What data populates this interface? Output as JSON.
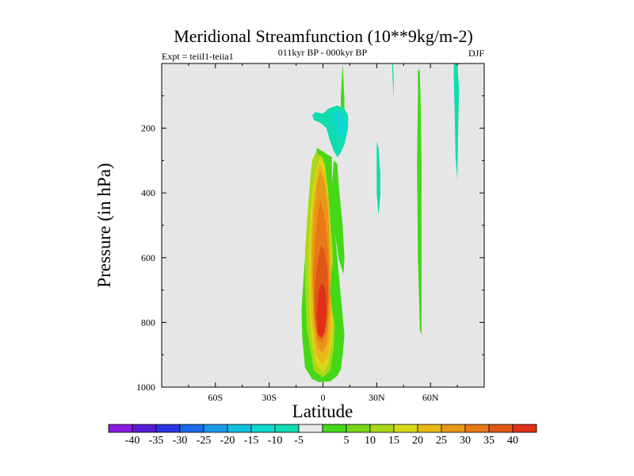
{
  "chart_data": {
    "type": "heatmap",
    "title": "Meridional Streamfunction (10**9kg/m-2)",
    "subtitle_left": "Expt = teiil1-teiia1",
    "subtitle_center": "011kyr BP - 000kyr BP",
    "subtitle_right": "DJF",
    "xlabel": "Latitude",
    "ylabel": "Pressure (in hPa)",
    "xlim": [
      -90,
      90
    ],
    "ylim": [
      1000,
      0
    ],
    "x_ticks": [
      {
        "value": -60,
        "label": "60S"
      },
      {
        "value": -30,
        "label": "30S"
      },
      {
        "value": 0,
        "label": "0"
      },
      {
        "value": 30,
        "label": "30N"
      },
      {
        "value": 60,
        "label": "60N"
      }
    ],
    "y_ticks": [
      {
        "value": 200,
        "label": "200"
      },
      {
        "value": 400,
        "label": "400"
      },
      {
        "value": 600,
        "label": "600"
      },
      {
        "value": 800,
        "label": "800"
      },
      {
        "value": 1000,
        "label": "1000"
      }
    ],
    "background_color": "#e6e6e6",
    "colorbar": {
      "colors": [
        "#8a1be0",
        "#5a1bd6",
        "#2e35e0",
        "#1b6ae8",
        "#1b99e8",
        "#10c0e0",
        "#10d8d0",
        "#10dcb0",
        "#e8e8e8",
        "#44d818",
        "#78d818",
        "#a8d818",
        "#d8d818",
        "#e8b818",
        "#e89818",
        "#e87818",
        "#e05818",
        "#e03018"
      ],
      "labels": [
        "-40",
        "-35",
        "-30",
        "-25",
        "-20",
        "-15",
        "-10",
        "-5",
        "5",
        "10",
        "15",
        "20",
        "25",
        "30",
        "35",
        "40"
      ]
    },
    "contours": [
      {
        "level": 5,
        "color": "#44d818",
        "lat": [
          -3.5,
          -3.5,
          -6,
          -7,
          -8,
          -9,
          -10,
          -11,
          -12,
          -11.5,
          -10,
          -6,
          -2,
          4,
          8,
          10,
          11,
          12,
          11,
          10,
          9,
          8,
          7,
          6,
          5.5,
          5,
          5
        ],
        "p": [
          260,
          290,
          320,
          380,
          450,
          520,
          600,
          680,
          760,
          850,
          940,
          975,
          985,
          982,
          965,
          945,
          900,
          840,
          780,
          720,
          660,
          600,
          540,
          480,
          420,
          350,
          290
        ]
      },
      {
        "level": 10,
        "color": "#a8d818",
        "lat": [
          -4,
          -6,
          -7,
          -8,
          -9,
          -10,
          -10,
          -9,
          -5,
          0,
          4,
          6,
          7,
          6,
          5.5,
          4,
          2,
          0
        ],
        "p": [
          275,
          300,
          350,
          420,
          500,
          580,
          680,
          820,
          950,
          970,
          950,
          880,
          780,
          680,
          580,
          470,
          360,
          290
        ]
      },
      {
        "level": 15,
        "color": "#d8d818",
        "lat": [
          -2,
          -4,
          -5.5,
          -7,
          -8,
          -8,
          -7,
          -4,
          0,
          3,
          5,
          6,
          5,
          4,
          3,
          1
        ],
        "p": [
          290,
          330,
          380,
          460,
          560,
          680,
          820,
          930,
          955,
          930,
          860,
          760,
          640,
          520,
          400,
          310
        ]
      },
      {
        "level": 20,
        "color": "#e8b818",
        "lat": [
          -2,
          -4,
          -5.5,
          -6.5,
          -7,
          -6.5,
          -4,
          0,
          3,
          4.5,
          5,
          4,
          3,
          1
        ],
        "p": [
          310,
          360,
          420,
          520,
          640,
          780,
          900,
          930,
          900,
          820,
          700,
          560,
          420,
          340
        ]
      },
      {
        "level": 25,
        "color": "#e89818",
        "lat": [
          -1.5,
          -3.5,
          -5,
          -6,
          -6,
          -5,
          -3,
          0,
          2.5,
          4,
          4,
          3,
          1
        ],
        "p": [
          330,
          380,
          460,
          560,
          680,
          810,
          880,
          895,
          860,
          760,
          620,
          460,
          370
        ]
      },
      {
        "level": 30,
        "color": "#e87818",
        "lat": [
          -1.5,
          -3,
          -4.5,
          -5.5,
          -5,
          -3,
          0,
          2.5,
          3.5,
          3,
          1.5
        ],
        "p": [
          420,
          470,
          560,
          660,
          780,
          850,
          865,
          820,
          720,
          600,
          490
        ]
      },
      {
        "level": 35,
        "color": "#e05818",
        "lat": [
          -1,
          -3,
          -4.5,
          -4.5,
          -3,
          0,
          2,
          3,
          2.5,
          1
        ],
        "p": [
          560,
          610,
          690,
          780,
          840,
          845,
          800,
          720,
          640,
          580
        ]
      },
      {
        "level": 40,
        "color": "#e03018",
        "lat": [
          -1,
          -2.5,
          -3.5,
          -3,
          -1,
          1,
          2,
          1.5,
          0.5
        ],
        "p": [
          680,
          710,
          770,
          830,
          850,
          830,
          770,
          710,
          685
        ]
      },
      {
        "level": 5,
        "color": "#44d818",
        "lat": [
          6,
          5,
          6,
          9,
          11.5,
          12,
          11,
          9,
          8
        ],
        "p": [
          300,
          380,
          500,
          610,
          650,
          600,
          500,
          390,
          310
        ]
      },
      {
        "level": 5,
        "color": "#44d818",
        "lat": [
          5,
          4,
          5,
          7,
          7,
          6
        ],
        "p": [
          620,
          700,
          760,
          820,
          720,
          640
        ]
      },
      {
        "level": 5,
        "color": "#44d818",
        "lat": [
          11,
          10,
          10,
          12,
          12,
          11
        ],
        "p": [
          0,
          100,
          160,
          180,
          110,
          0
        ]
      },
      {
        "level": 5,
        "color": "#44d818",
        "lat": [
          53,
          53,
          52.5,
          53,
          54,
          54,
          55,
          55,
          55,
          55,
          54.5,
          54
        ],
        "p": [
          20,
          100,
          300,
          600,
          800,
          820,
          840,
          820,
          600,
          300,
          100,
          20
        ]
      },
      {
        "level": -5,
        "color": "#10dcb0",
        "lat": [
          -6,
          -4,
          0,
          3,
          5,
          8,
          12,
          14,
          14,
          12,
          10,
          8,
          6,
          4,
          2,
          -1,
          -3,
          -5
        ],
        "p": [
          160,
          150,
          155,
          140,
          135,
          130,
          140,
          160,
          200,
          250,
          275,
          290,
          270,
          240,
          200,
          185,
          180,
          175
        ]
      },
      {
        "level": -10,
        "color": "#10d8d0",
        "lat": [
          5,
          8,
          11,
          13,
          13,
          10,
          7
        ],
        "p": [
          150,
          145,
          150,
          170,
          210,
          235,
          205
        ]
      },
      {
        "level": -5,
        "color": "#10dcb0",
        "lat": [
          30,
          31,
          32,
          32,
          31,
          30
        ],
        "p": [
          240,
          260,
          340,
          410,
          470,
          400
        ]
      },
      {
        "level": -5,
        "color": "#10dcb0",
        "lat": [
          38.5,
          39,
          39.5,
          39.5,
          39,
          38.5
        ],
        "p": [
          0,
          60,
          110,
          40,
          0,
          0
        ]
      },
      {
        "level": -5,
        "color": "#10dcb0",
        "lat": [
          73,
          75,
          76,
          75.5,
          75,
          74,
          73.5,
          73
        ],
        "p": [
          0,
          0,
          80,
          200,
          360,
          290,
          150,
          50
        ]
      }
    ]
  }
}
